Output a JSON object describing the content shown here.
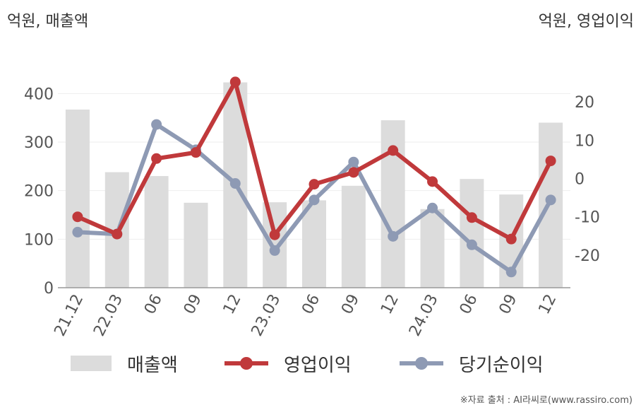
{
  "units": {
    "left": "억원, 매출액",
    "right": "억원, 영업이익"
  },
  "colors": {
    "revenue": "#dcdcdc",
    "operating_profit": "#c0393b",
    "net_income": "#8e9ab4",
    "axis": "#999999",
    "grid": "#eeeeee"
  },
  "chart_data": {
    "type": "bar",
    "categories": [
      "21.12",
      "22.03",
      "06",
      "09",
      "12",
      "23.03",
      "06",
      "09",
      "12",
      "24.03",
      "06",
      "09",
      "12"
    ],
    "series": [
      {
        "name": "매출액",
        "type": "bar",
        "axis": "left",
        "values": [
          367,
          238,
          230,
          175,
          423,
          176,
          180,
          210,
          345,
          162,
          224,
          192,
          340
        ]
      },
      {
        "name": "영업이익",
        "type": "line",
        "axis": "right",
        "values": [
          -10.0,
          -14.5,
          5.2,
          6.8,
          25.2,
          -14.7,
          -1.5,
          1.6,
          7.3,
          -0.8,
          -10.2,
          -15.8,
          4.6
        ]
      },
      {
        "name": "당기순이익",
        "type": "line",
        "axis": "right",
        "values": [
          -14.0,
          -14.5,
          14.1,
          7.5,
          -1.3,
          -18.8,
          -5.6,
          4.3,
          -15.1,
          -7.7,
          -17.3,
          -24.4,
          -5.6
        ]
      }
    ],
    "y_left": {
      "min": 0,
      "max": 450,
      "ticks": [
        0,
        100,
        200,
        300,
        400
      ]
    },
    "y_right": {
      "min": -28.5,
      "max": 28.5,
      "ticks": [
        -20,
        -10,
        0,
        10,
        20
      ]
    },
    "grid": true,
    "legend_position": "bottom"
  },
  "legend": [
    {
      "label": "매출액",
      "kind": "bar"
    },
    {
      "label": "영업이익",
      "kind": "line",
      "color": "#c0393b"
    },
    {
      "label": "당기순이익",
      "kind": "line",
      "color": "#8e9ab4"
    }
  ],
  "source": "※자료 출처 : AI라씨로(www.rassiro.com)"
}
